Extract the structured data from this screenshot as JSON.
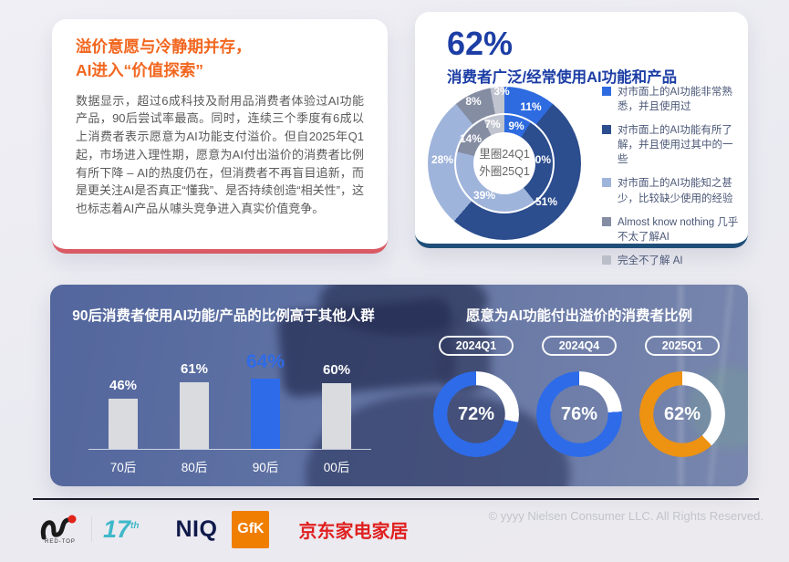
{
  "page": {
    "copyright": "© yyyy Nielsen Consumer LLC. All Rights Reserved."
  },
  "insight_card": {
    "title_line1": "溢价意愿与冷静期并存，",
    "title_line2": "AI进入“价值探索”",
    "body": "数据显示，超过6成科技及耐用品消费者体验过AI功能产品，90后尝试率最高。同时，连续三个季度有6成以上消费者表示愿意为AI功能支付溢价。但自2025年Q1起，市场进入理性期，愿意为AI付出溢价的消费者比例有所下降 – AI的热度仍在，但消费者不再盲目追新，而是更关注AI是否真正“懂我”、是否持续创造“相关性”，这也标志着AI产品从噱头竞争进入真实价值竞争。",
    "accent_color": "#F2671F",
    "bottom_border_color": "#D95A64"
  },
  "usage_card": {
    "headline": "62%",
    "subtitle": "消费者广泛/经常使用AI功能和产品",
    "headline_color": "#1C3EA5",
    "bottom_border_color": "#1F4E79",
    "donut_center_line1": "里圈24Q1",
    "donut_center_line2": "外圈25Q1",
    "legend": [
      {
        "label": "对市面上的AI功能非常熟悉，并且使用过",
        "color": "#2E6BE0"
      },
      {
        "label": "对市面上的AI功能有所了解，并且使用过其中的一些",
        "color": "#2C4D8E"
      },
      {
        "label": "对市面上的AI功能知之甚少，比较缺少使用的经验",
        "color": "#9FB4DB"
      },
      {
        "label": "Almost know nothing 几乎不太了解AI",
        "color": "#858DA3"
      },
      {
        "label": "完全不了解 AI",
        "color": "#B9BEC9"
      }
    ]
  },
  "panel": {
    "bar_title": "90后消费者使用AI功能/产品的比例高于其他人群",
    "gauge_title": "愿意为AI功能付出溢价的消费者比例"
  },
  "chart_data": [
    {
      "type": "pie",
      "subtype": "double-donut",
      "title": "消费者广泛/经常使用AI功能和产品",
      "headline_value": "62%",
      "categories": [
        "对市面上的AI功能非常熟悉，并且使用过",
        "对市面上的AI功能有所了解，并且使用过其中的一些",
        "对市面上的AI功能知之甚少，比较缺少使用的经验",
        "Almost know nothing 几乎不太了解AI",
        "完全不了解 AI"
      ],
      "colors": [
        "#2E6BE0",
        "#2C4D8E",
        "#9FB4DB",
        "#858DA3",
        "#C0C4CF"
      ],
      "series": [
        {
          "name": "24Q1 里圈",
          "values": [
            9,
            30,
            39,
            14,
            7
          ]
        },
        {
          "name": "25Q1 外圈",
          "values": [
            11,
            51,
            28,
            8,
            3
          ]
        }
      ],
      "center_note": "里圈24Q1 外圈25Q1",
      "legend_position": "right",
      "unit": "%"
    },
    {
      "type": "bar",
      "title": "90后消费者使用AI功能/产品的比例高于其他人群",
      "categories": [
        "70后",
        "80后",
        "90后",
        "00后"
      ],
      "values": [
        46,
        61,
        64,
        60
      ],
      "unit": "%",
      "highlight_index": 2,
      "bar_colors": [
        "#DADBDF",
        "#DADBDF",
        "#2E6BE8",
        "#DADBDF"
      ],
      "ylim": [
        0,
        100
      ],
      "grid": false
    },
    {
      "type": "pie",
      "subtype": "gauge-donuts",
      "title": "愿意为AI功能付出溢价的消费者比例",
      "categories": [
        "2024Q1",
        "2024Q4",
        "2025Q1"
      ],
      "values": [
        72,
        76,
        62
      ],
      "unit": "%",
      "colors": [
        "#2E6BE8",
        "#2E6BE8",
        "#EE9211"
      ]
    }
  ],
  "footer": {
    "logos": [
      {
        "name": "red-top-award",
        "text": "RED-TOP"
      },
      {
        "name": "17th",
        "text": "17",
        "sup": "th"
      },
      {
        "name": "NIQ",
        "text": "NIQ"
      },
      {
        "name": "GfK",
        "text": "GfK"
      },
      {
        "name": "jd-home",
        "text": "京东家电家居"
      }
    ]
  }
}
